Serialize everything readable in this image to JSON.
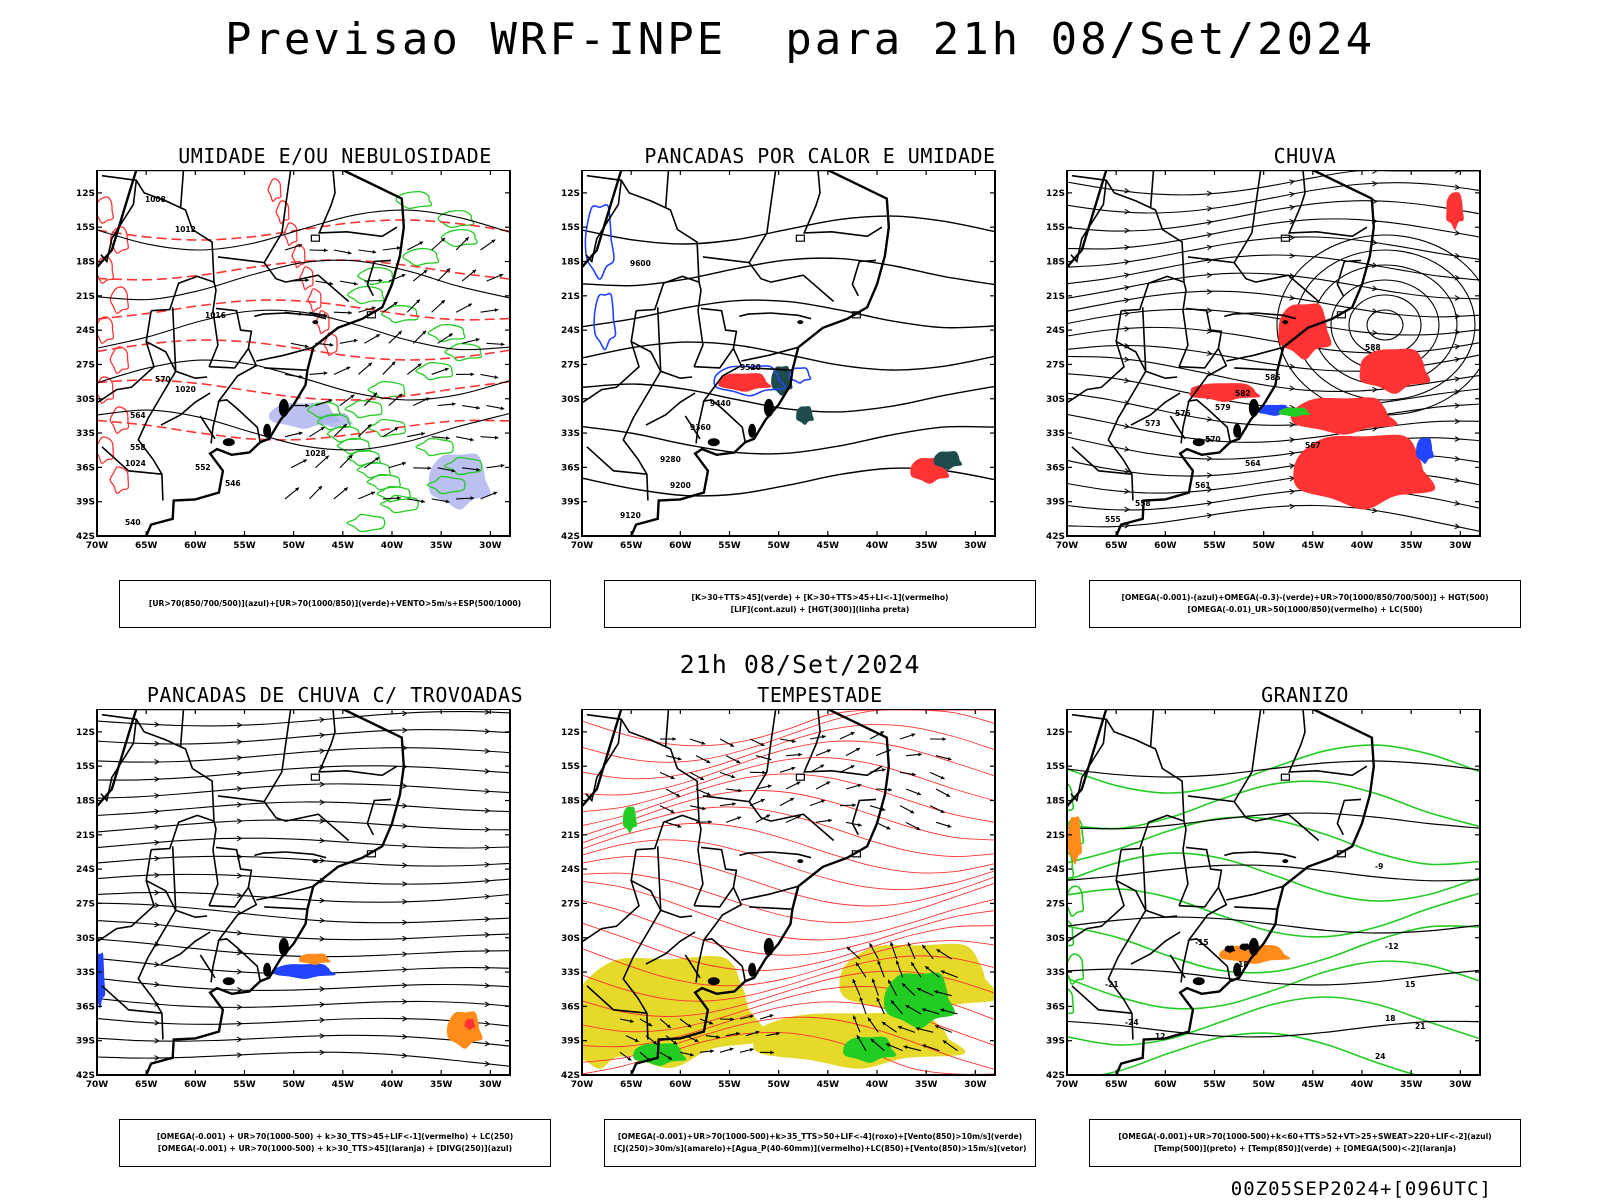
{
  "title": "Previsao WRF-INPE  para 21h 08/Set/2024",
  "row_title": "21h 08/Set/2024",
  "footer": "00Z05SEP2024+[096UTC]",
  "axis": {
    "lat_labels": [
      "12S",
      "15S",
      "18S",
      "21S",
      "24S",
      "27S",
      "30S",
      "33S",
      "36S",
      "39S",
      "42S"
    ],
    "lon_labels": [
      "70W",
      "65W",
      "60W",
      "55W",
      "50W",
      "45W",
      "40W",
      "35W",
      "30W"
    ]
  },
  "colors": {
    "green": "#22cc22",
    "red": "#ff3333",
    "blue": "#2244ff",
    "lavender": "#aab0ee",
    "yellow": "#e6d92a",
    "orange": "#ff8c1a",
    "purple": "#8a2be2",
    "darkteal": "#1e4b4b"
  },
  "panels": [
    {
      "id": "umidade",
      "title": "UMIDADE E/OU NEBULOSIDADE",
      "legend": [
        "[UR>70(850/700/500)](azul)+[UR>70(1000/850)](verde)+VENTO>5m/s+ESP(500/1000)"
      ],
      "contour_labels": [
        "1008",
        "1012",
        "1016",
        "1020",
        "1024",
        "1028",
        "570",
        "564",
        "558",
        "552",
        "546",
        "540"
      ]
    },
    {
      "id": "pancadas-calor",
      "title": "PANCADAS POR CALOR E UMIDADE",
      "legend": [
        "[K>30+TTS>45](verde) + [K>30+TTS>45+LI<-1](vermelho)",
        "[LIF](cont.azul) + [HGT(300)](linha preta)"
      ],
      "contour_labels": [
        "9600",
        "9520",
        "9440",
        "9360",
        "9280",
        "9200",
        "9120"
      ]
    },
    {
      "id": "chuva",
      "title": "CHUVA",
      "legend": [
        "[OMEGA(-0.001)-(azul)+OMEGA(-0.3)-(verde)+UR>70(1000/850/700/500)] + HGT(500)",
        "[OMEGA(-0.01)_UR>50(1000/850)(vermelho) + LC(500)"
      ],
      "contour_labels": [
        "588",
        "585",
        "582",
        "579",
        "576",
        "573",
        "570",
        "567",
        "564",
        "561",
        "558",
        "555"
      ]
    },
    {
      "id": "trovoadas",
      "title": "PANCADAS DE CHUVA C/ TROVOADAS",
      "legend": [
        "[OMEGA(-0.001) + UR>70(1000-500) + k>30_TTS>45+LIF<-1](vermelho) + LC(250)",
        "[OMEGA(-0.001) + UR>70(1000-500) + k>30_TTS>45](laranja) + [DIVG(250)](azul)"
      ],
      "contour_labels": []
    },
    {
      "id": "tempestade",
      "title": "TEMPESTADE",
      "legend": [
        "[OMEGA(-0.001)+UR>70(1000-500)+k>35_TTS>50+LIF<-4](roxo)+[Vento(850)>10m/s](verde)",
        "[CJ(250)>30m/s](amarelo)+[Agua_P(40-60mm)](vermelho)+LC(850)+[Vento(850)>15m/s](vetor)"
      ],
      "contour_labels": []
    },
    {
      "id": "granizo",
      "title": "GRANIZO",
      "legend": [
        "[OMEGA(-0.001)+UR>70(1000-500)+k<60+TTS>52+VT>25+SWEAT>220+LIF<-2](azul)",
        "[Temp(500)](preto) + [Temp(850)](verde) + [OMEGA(500)<-2](laranja)"
      ],
      "contour_labels": [
        "-9",
        "-12",
        "-15",
        "-18",
        "-21",
        "-24",
        "12",
        "15",
        "18",
        "21",
        "24"
      ]
    }
  ]
}
